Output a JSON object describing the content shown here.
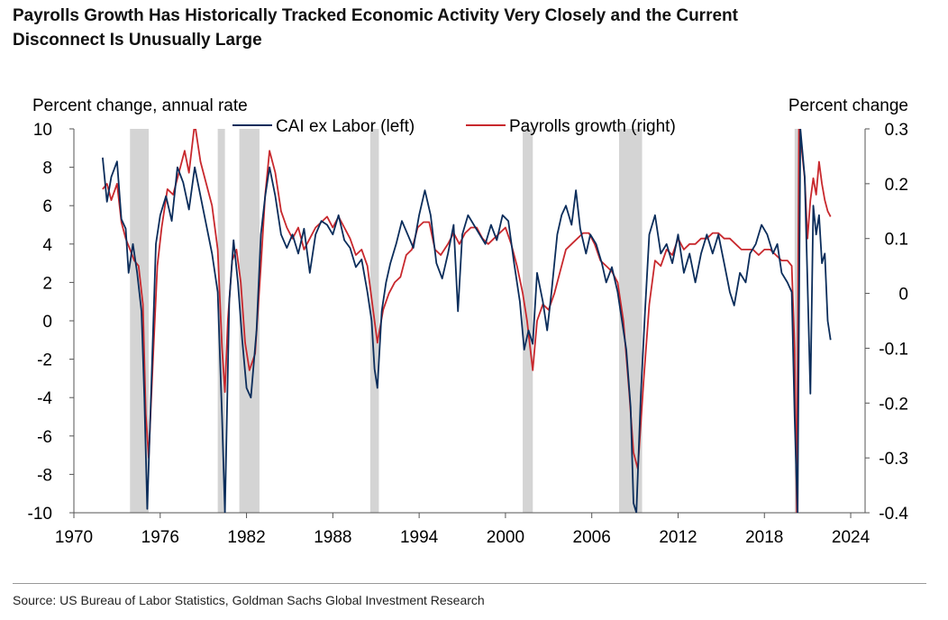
{
  "title": {
    "line1": "Payrolls Growth Has Historically Tracked Economic Activity Very Closely and the Current",
    "line2": "Disconnect Is Unusually Large"
  },
  "source": "Source: US Bureau of Labor Statistics, Goldman Sachs Global Investment Research",
  "colors": {
    "cai": "#0b2d5b",
    "payrolls": "#c8282d",
    "recession": "#d4d4d4"
  },
  "chart_data": {
    "type": "line",
    "ylabel_left": "Percent change, annual rate",
    "ylabel_right": "Percent change",
    "xlim": [
      1970,
      2025
    ],
    "ylim_left": [
      -10,
      10
    ],
    "ylim_right": [
      -0.4,
      0.3
    ],
    "x_ticks": [
      "1970",
      "1976",
      "1982",
      "1988",
      "1994",
      "2000",
      "2006",
      "2012",
      "2018",
      "2024"
    ],
    "y_ticks_left": [
      "10",
      "8",
      "6",
      "4",
      "2",
      "0",
      "-2",
      "-4",
      "-6",
      "-8",
      "-10"
    ],
    "y_ticks_right": [
      "0.3",
      "0.2",
      "0.1",
      "0",
      "-0.1",
      "-0.2",
      "-0.3",
      "-0.4"
    ],
    "legend_location": "top-center",
    "recessions": [
      [
        1973.9,
        1975.2
      ],
      [
        1980.0,
        1980.5
      ],
      [
        1981.5,
        1982.9
      ],
      [
        1990.6,
        1991.2
      ],
      [
        2001.2,
        2001.9
      ],
      [
        2007.9,
        2009.5
      ],
      [
        2020.1,
        2020.4
      ]
    ],
    "series": [
      {
        "name": "CAI ex Labor (left)",
        "axis": "left",
        "points": [
          [
            1972.0,
            8.5
          ],
          [
            1972.3,
            6.2
          ],
          [
            1972.6,
            7.5
          ],
          [
            1973.0,
            8.3
          ],
          [
            1973.3,
            5.3
          ],
          [
            1973.6,
            4.8
          ],
          [
            1973.8,
            2.5
          ],
          [
            1974.1,
            4.0
          ],
          [
            1974.4,
            2.5
          ],
          [
            1974.7,
            0.5
          ],
          [
            1974.9,
            -4.0
          ],
          [
            1975.1,
            -9.8
          ],
          [
            1975.4,
            -3.0
          ],
          [
            1975.7,
            4.0
          ],
          [
            1976.0,
            5.5
          ],
          [
            1976.4,
            6.5
          ],
          [
            1976.8,
            5.2
          ],
          [
            1977.2,
            8.0
          ],
          [
            1977.6,
            7.2
          ],
          [
            1978.0,
            5.8
          ],
          [
            1978.4,
            8.0
          ],
          [
            1978.8,
            6.5
          ],
          [
            1979.2,
            5.0
          ],
          [
            1979.6,
            3.5
          ],
          [
            1980.0,
            1.5
          ],
          [
            1980.3,
            -5.0
          ],
          [
            1980.5,
            -10.0
          ],
          [
            1980.8,
            1.0
          ],
          [
            1981.1,
            4.2
          ],
          [
            1981.4,
            2.0
          ],
          [
            1981.7,
            -1.0
          ],
          [
            1982.0,
            -3.5
          ],
          [
            1982.3,
            -4.0
          ],
          [
            1982.7,
            -0.5
          ],
          [
            1983.0,
            4.5
          ],
          [
            1983.3,
            6.5
          ],
          [
            1983.6,
            8.0
          ],
          [
            1984.0,
            6.5
          ],
          [
            1984.4,
            4.5
          ],
          [
            1984.8,
            3.8
          ],
          [
            1985.2,
            4.5
          ],
          [
            1985.6,
            3.5
          ],
          [
            1986.0,
            4.8
          ],
          [
            1986.4,
            2.5
          ],
          [
            1986.8,
            4.5
          ],
          [
            1987.2,
            5.2
          ],
          [
            1987.6,
            5.0
          ],
          [
            1988.0,
            4.5
          ],
          [
            1988.4,
            5.5
          ],
          [
            1988.8,
            4.2
          ],
          [
            1989.2,
            3.8
          ],
          [
            1989.6,
            2.8
          ],
          [
            1990.0,
            3.2
          ],
          [
            1990.4,
            1.5
          ],
          [
            1990.7,
            0.0
          ],
          [
            1990.9,
            -2.5
          ],
          [
            1991.1,
            -3.5
          ],
          [
            1991.4,
            0.5
          ],
          [
            1991.7,
            2.0
          ],
          [
            1992.0,
            3.0
          ],
          [
            1992.4,
            4.0
          ],
          [
            1992.8,
            5.2
          ],
          [
            1993.2,
            4.5
          ],
          [
            1993.6,
            3.8
          ],
          [
            1994.0,
            5.5
          ],
          [
            1994.4,
            6.8
          ],
          [
            1994.8,
            5.5
          ],
          [
            1995.2,
            3.0
          ],
          [
            1995.6,
            2.2
          ],
          [
            1996.0,
            3.5
          ],
          [
            1996.4,
            5.0
          ],
          [
            1996.7,
            0.5
          ],
          [
            1997.0,
            4.5
          ],
          [
            1997.4,
            5.5
          ],
          [
            1997.8,
            5.0
          ],
          [
            1998.2,
            4.5
          ],
          [
            1998.6,
            4.0
          ],
          [
            1999.0,
            5.0
          ],
          [
            1999.4,
            4.2
          ],
          [
            1999.8,
            5.5
          ],
          [
            2000.2,
            5.2
          ],
          [
            2000.6,
            3.0
          ],
          [
            2001.0,
            1.0
          ],
          [
            2001.3,
            -1.5
          ],
          [
            2001.6,
            -0.5
          ],
          [
            2001.9,
            -1.2
          ],
          [
            2002.2,
            2.5
          ],
          [
            2002.6,
            1.0
          ],
          [
            2002.9,
            -0.5
          ],
          [
            2003.2,
            1.5
          ],
          [
            2003.6,
            4.5
          ],
          [
            2003.9,
            5.5
          ],
          [
            2004.2,
            6.0
          ],
          [
            2004.6,
            5.0
          ],
          [
            2004.9,
            6.8
          ],
          [
            2005.2,
            4.8
          ],
          [
            2005.6,
            3.5
          ],
          [
            2005.9,
            4.5
          ],
          [
            2006.3,
            4.0
          ],
          [
            2006.7,
            3.0
          ],
          [
            2007.0,
            2.0
          ],
          [
            2007.4,
            2.8
          ],
          [
            2007.8,
            1.5
          ],
          [
            2008.1,
            0.0
          ],
          [
            2008.4,
            -1.5
          ],
          [
            2008.7,
            -4.5
          ],
          [
            2008.9,
            -9.5
          ],
          [
            2009.1,
            -10.0
          ],
          [
            2009.4,
            -4.0
          ],
          [
            2009.7,
            0.5
          ],
          [
            2010.0,
            4.5
          ],
          [
            2010.4,
            5.5
          ],
          [
            2010.8,
            3.5
          ],
          [
            2011.2,
            4.0
          ],
          [
            2011.6,
            3.0
          ],
          [
            2012.0,
            4.5
          ],
          [
            2012.4,
            2.5
          ],
          [
            2012.8,
            3.5
          ],
          [
            2013.2,
            2.0
          ],
          [
            2013.6,
            3.5
          ],
          [
            2014.0,
            4.5
          ],
          [
            2014.4,
            3.5
          ],
          [
            2014.8,
            4.5
          ],
          [
            2015.2,
            3.0
          ],
          [
            2015.6,
            1.5
          ],
          [
            2015.9,
            0.8
          ],
          [
            2016.3,
            2.5
          ],
          [
            2016.7,
            2.0
          ],
          [
            2017.0,
            3.5
          ],
          [
            2017.4,
            4.0
          ],
          [
            2017.8,
            5.0
          ],
          [
            2018.2,
            4.5
          ],
          [
            2018.6,
            3.5
          ],
          [
            2018.9,
            4.0
          ],
          [
            2019.2,
            2.5
          ],
          [
            2019.6,
            2.0
          ],
          [
            2019.9,
            1.5
          ],
          [
            2020.1,
            -5.0
          ],
          [
            2020.3,
            -10.0
          ],
          [
            2020.5,
            10.0
          ],
          [
            2020.8,
            7.5
          ],
          [
            2021.0,
            2.0
          ],
          [
            2021.2,
            -3.8
          ],
          [
            2021.4,
            6.0
          ],
          [
            2021.6,
            4.5
          ],
          [
            2021.8,
            5.5
          ],
          [
            2022.0,
            3.0
          ],
          [
            2022.2,
            3.5
          ],
          [
            2022.4,
            0.0
          ],
          [
            2022.6,
            -1.0
          ]
        ]
      },
      {
        "name": "Payrolls growth (right)",
        "axis": "right",
        "points": [
          [
            1972.0,
            0.19
          ],
          [
            1972.3,
            0.2
          ],
          [
            1972.6,
            0.17
          ],
          [
            1973.0,
            0.2
          ],
          [
            1973.3,
            0.13
          ],
          [
            1973.6,
            0.1
          ],
          [
            1973.9,
            0.08
          ],
          [
            1974.2,
            0.06
          ],
          [
            1974.5,
            0.05
          ],
          [
            1974.8,
            -0.02
          ],
          [
            1975.0,
            -0.22
          ],
          [
            1975.2,
            -0.3
          ],
          [
            1975.5,
            -0.12
          ],
          [
            1975.8,
            0.05
          ],
          [
            1976.1,
            0.12
          ],
          [
            1976.5,
            0.19
          ],
          [
            1976.9,
            0.18
          ],
          [
            1977.3,
            0.22
          ],
          [
            1977.7,
            0.26
          ],
          [
            1978.0,
            0.22
          ],
          [
            1978.4,
            0.31
          ],
          [
            1978.8,
            0.24
          ],
          [
            1979.2,
            0.2
          ],
          [
            1979.6,
            0.16
          ],
          [
            1980.0,
            0.08
          ],
          [
            1980.3,
            -0.1
          ],
          [
            1980.5,
            -0.18
          ],
          [
            1980.7,
            -0.05
          ],
          [
            1981.0,
            0.06
          ],
          [
            1981.3,
            0.08
          ],
          [
            1981.6,
            0.02
          ],
          [
            1981.9,
            -0.09
          ],
          [
            1982.2,
            -0.14
          ],
          [
            1982.6,
            -0.11
          ],
          [
            1983.0,
            0.05
          ],
          [
            1983.3,
            0.18
          ],
          [
            1983.6,
            0.26
          ],
          [
            1984.0,
            0.22
          ],
          [
            1984.4,
            0.15
          ],
          [
            1984.8,
            0.12
          ],
          [
            1985.2,
            0.1
          ],
          [
            1985.6,
            0.12
          ],
          [
            1986.0,
            0.08
          ],
          [
            1986.4,
            0.1
          ],
          [
            1986.8,
            0.12
          ],
          [
            1987.2,
            0.13
          ],
          [
            1987.6,
            0.14
          ],
          [
            1988.0,
            0.12
          ],
          [
            1988.4,
            0.14
          ],
          [
            1988.8,
            0.12
          ],
          [
            1989.2,
            0.1
          ],
          [
            1989.6,
            0.07
          ],
          [
            1990.0,
            0.08
          ],
          [
            1990.4,
            0.05
          ],
          [
            1990.8,
            -0.03
          ],
          [
            1991.1,
            -0.09
          ],
          [
            1991.5,
            -0.03
          ],
          [
            1991.9,
            0.0
          ],
          [
            1992.3,
            0.02
          ],
          [
            1992.7,
            0.03
          ],
          [
            1993.1,
            0.07
          ],
          [
            1993.5,
            0.08
          ],
          [
            1993.9,
            0.12
          ],
          [
            1994.3,
            0.13
          ],
          [
            1994.7,
            0.13
          ],
          [
            1995.1,
            0.08
          ],
          [
            1995.5,
            0.07
          ],
          [
            1996.0,
            0.09
          ],
          [
            1996.4,
            0.11
          ],
          [
            1996.8,
            0.09
          ],
          [
            1997.2,
            0.11
          ],
          [
            1997.6,
            0.12
          ],
          [
            1998.0,
            0.12
          ],
          [
            1998.4,
            0.1
          ],
          [
            1998.8,
            0.09
          ],
          [
            1999.2,
            0.1
          ],
          [
            1999.6,
            0.11
          ],
          [
            2000.0,
            0.12
          ],
          [
            2000.4,
            0.09
          ],
          [
            2000.8,
            0.05
          ],
          [
            2001.2,
            0.0
          ],
          [
            2001.5,
            -0.05
          ],
          [
            2001.9,
            -0.14
          ],
          [
            2002.2,
            -0.05
          ],
          [
            2002.6,
            -0.02
          ],
          [
            2003.0,
            -0.03
          ],
          [
            2003.4,
            0.0
          ],
          [
            2003.8,
            0.04
          ],
          [
            2004.2,
            0.08
          ],
          [
            2004.6,
            0.09
          ],
          [
            2005.0,
            0.1
          ],
          [
            2005.4,
            0.11
          ],
          [
            2005.8,
            0.11
          ],
          [
            2006.2,
            0.09
          ],
          [
            2006.6,
            0.06
          ],
          [
            2007.0,
            0.05
          ],
          [
            2007.4,
            0.04
          ],
          [
            2007.8,
            0.02
          ],
          [
            2008.2,
            -0.05
          ],
          [
            2008.6,
            -0.18
          ],
          [
            2008.9,
            -0.29
          ],
          [
            2009.2,
            -0.32
          ],
          [
            2009.6,
            -0.16
          ],
          [
            2010.0,
            -0.02
          ],
          [
            2010.4,
            0.06
          ],
          [
            2010.8,
            0.05
          ],
          [
            2011.2,
            0.08
          ],
          [
            2011.6,
            0.07
          ],
          [
            2012.0,
            0.1
          ],
          [
            2012.4,
            0.08
          ],
          [
            2012.8,
            0.09
          ],
          [
            2013.2,
            0.09
          ],
          [
            2013.6,
            0.1
          ],
          [
            2014.0,
            0.1
          ],
          [
            2014.4,
            0.11
          ],
          [
            2014.8,
            0.11
          ],
          [
            2015.2,
            0.1
          ],
          [
            2015.6,
            0.1
          ],
          [
            2016.0,
            0.09
          ],
          [
            2016.4,
            0.08
          ],
          [
            2016.8,
            0.08
          ],
          [
            2017.2,
            0.08
          ],
          [
            2017.6,
            0.07
          ],
          [
            2018.0,
            0.08
          ],
          [
            2018.4,
            0.08
          ],
          [
            2018.8,
            0.07
          ],
          [
            2019.2,
            0.06
          ],
          [
            2019.6,
            0.06
          ],
          [
            2019.9,
            0.05
          ],
          [
            2020.1,
            -0.1
          ],
          [
            2020.25,
            -0.4
          ],
          [
            2020.4,
            0.3
          ],
          [
            2020.6,
            0.26
          ],
          [
            2020.8,
            0.21
          ],
          [
            2021.0,
            0.1
          ],
          [
            2021.2,
            0.17
          ],
          [
            2021.4,
            0.21
          ],
          [
            2021.6,
            0.18
          ],
          [
            2021.8,
            0.24
          ],
          [
            2022.0,
            0.2
          ],
          [
            2022.2,
            0.17
          ],
          [
            2022.4,
            0.15
          ],
          [
            2022.6,
            0.14
          ]
        ]
      }
    ]
  }
}
